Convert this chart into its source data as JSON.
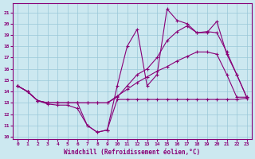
{
  "xlabel": "Windchill (Refroidissement éolien,°C)",
  "xlim": [
    -0.5,
    23.5
  ],
  "ylim": [
    9.8,
    21.8
  ],
  "yticks": [
    10,
    11,
    12,
    13,
    14,
    15,
    16,
    17,
    18,
    19,
    20,
    21
  ],
  "xticks": [
    0,
    1,
    2,
    3,
    4,
    5,
    6,
    7,
    8,
    9,
    10,
    11,
    12,
    13,
    14,
    15,
    16,
    17,
    18,
    19,
    20,
    21,
    22,
    23
  ],
  "bg_color": "#cce8f0",
  "grid_color": "#99c8d8",
  "line_color": "#880077",
  "lines": [
    {
      "x": [
        0,
        1,
        2,
        3,
        4,
        5,
        6,
        7,
        8,
        9,
        10,
        11,
        12,
        13,
        14,
        15,
        16,
        17,
        18,
        19,
        20,
        21,
        22,
        23
      ],
      "y": [
        14.5,
        14.0,
        13.2,
        12.9,
        12.8,
        12.8,
        12.5,
        11.0,
        10.4,
        10.6,
        13.3,
        13.3,
        13.3,
        13.3,
        13.3,
        13.3,
        13.3,
        13.3,
        13.3,
        13.3,
        13.3,
        13.3,
        13.3,
        13.4
      ]
    },
    {
      "x": [
        0,
        1,
        2,
        3,
        4,
        5,
        6,
        7,
        8,
        9,
        10,
        11,
        12,
        13,
        14,
        15,
        16,
        17,
        18,
        19,
        20,
        21,
        22,
        23
      ],
      "y": [
        14.5,
        14.0,
        13.2,
        13.0,
        13.0,
        13.0,
        13.0,
        13.0,
        13.0,
        13.0,
        13.6,
        14.2,
        14.8,
        15.3,
        15.8,
        16.2,
        16.7,
        17.1,
        17.5,
        17.5,
        17.3,
        15.5,
        13.5,
        13.5
      ]
    },
    {
      "x": [
        0,
        1,
        2,
        3,
        4,
        5,
        6,
        7,
        8,
        9,
        10,
        11,
        12,
        13,
        14,
        15,
        16,
        17,
        18,
        19,
        20,
        21,
        22,
        23
      ],
      "y": [
        14.5,
        14.0,
        13.2,
        13.0,
        13.0,
        13.0,
        13.0,
        11.0,
        10.4,
        10.6,
        14.5,
        18.0,
        19.5,
        14.5,
        15.5,
        21.3,
        20.3,
        20.0,
        19.2,
        19.2,
        20.2,
        17.3,
        15.5,
        13.5
      ]
    },
    {
      "x": [
        0,
        1,
        2,
        3,
        4,
        5,
        6,
        7,
        8,
        9,
        10,
        11,
        12,
        13,
        14,
        15,
        16,
        17,
        18,
        19,
        20,
        21,
        22,
        23
      ],
      "y": [
        14.5,
        14.0,
        13.2,
        13.0,
        13.0,
        13.0,
        13.0,
        13.0,
        13.0,
        13.0,
        13.5,
        14.5,
        15.5,
        16.0,
        17.0,
        18.5,
        19.3,
        19.8,
        19.2,
        19.3,
        19.2,
        17.5,
        15.5,
        13.5
      ]
    }
  ]
}
